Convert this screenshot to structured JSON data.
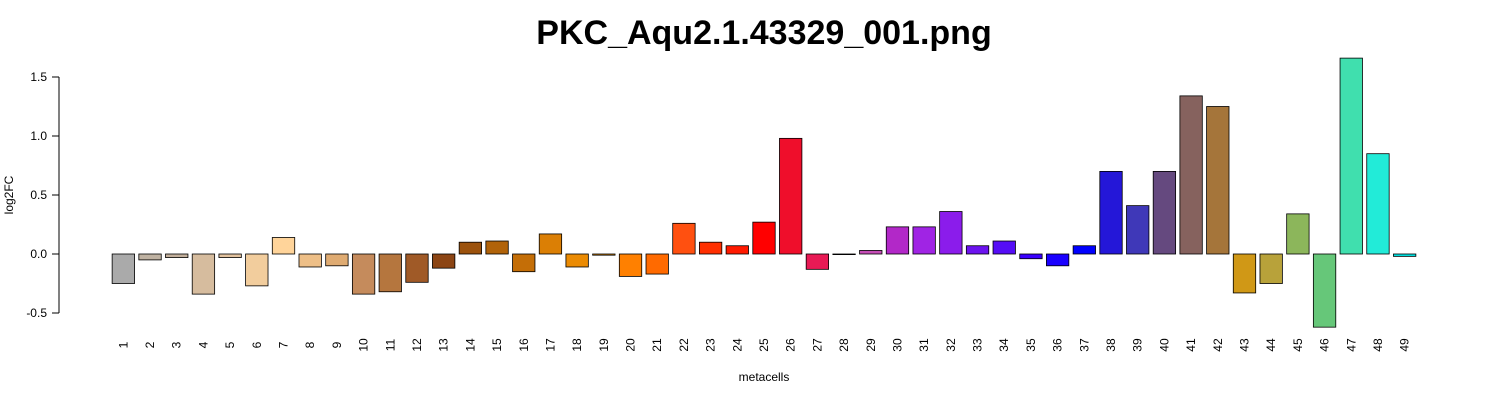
{
  "chart_data": {
    "type": "bar",
    "title": "PKC_Aqu2.1.43329_001.png",
    "xlabel": "metacells",
    "ylabel": "log2FC",
    "ylim": [
      -0.5,
      1.5
    ],
    "yticks": [
      -0.5,
      0.0,
      0.5,
      1.0,
      1.5
    ],
    "ytick_labels": [
      "-0.5",
      "0.0",
      "0.5",
      "1.0",
      "1.5"
    ],
    "grid": false,
    "legend": "none",
    "categories": [
      "1",
      "2",
      "3",
      "4",
      "5",
      "6",
      "7",
      "8",
      "9",
      "10",
      "11",
      "12",
      "13",
      "14",
      "15",
      "16",
      "17",
      "18",
      "19",
      "20",
      "21",
      "22",
      "23",
      "24",
      "25",
      "26",
      "27",
      "28",
      "29",
      "30",
      "31",
      "32",
      "33",
      "34",
      "35",
      "36",
      "37",
      "38",
      "39",
      "40",
      "41",
      "42",
      "43",
      "44",
      "45",
      "46",
      "47",
      "48",
      "49"
    ],
    "values": [
      -0.25,
      -0.05,
      -0.03,
      -0.34,
      -0.03,
      -0.27,
      0.14,
      -0.11,
      -0.1,
      -0.34,
      -0.32,
      -0.24,
      -0.12,
      0.1,
      0.11,
      -0.15,
      0.17,
      -0.11,
      -0.01,
      -0.19,
      -0.17,
      0.26,
      0.1,
      0.07,
      0.27,
      0.98,
      -0.13,
      0.0,
      0.03,
      0.23,
      0.23,
      0.36,
      0.07,
      0.11,
      -0.04,
      -0.1,
      0.07,
      0.7,
      0.41,
      0.7,
      1.34,
      1.25,
      -0.33,
      -0.25,
      0.34,
      -0.62,
      1.66,
      0.85,
      -0.02
    ],
    "colors": [
      "#aaaaaa",
      "#bfb2a2",
      "#c3b09c",
      "#d6bc9e",
      "#e3c39f",
      "#f2cd9d",
      "#ffd49a",
      "#eebf87",
      "#dfab72",
      "#c58b5c",
      "#b5763e",
      "#a05a27",
      "#8c4514",
      "#9c520c",
      "#b1630a",
      "#c46e07",
      "#db7f05",
      "#eb8b03",
      "#ff9900",
      "#ff8000",
      "#ff6a00",
      "#ff5010",
      "#ff2f00",
      "#ff1a00",
      "#ff0000",
      "#ef0e2b",
      "#e81a55",
      "#d33d89",
      "#c54db6",
      "#b228c8",
      "#a024e4",
      "#8b1ceb",
      "#6c13ef",
      "#550df6",
      "#3a00ff",
      "#1a00ff",
      "#0000ff",
      "#2417d8",
      "#3f38b8",
      "#65497f",
      "#86625e",
      "#a5753a",
      "#d09816",
      "#b8a23a",
      "#8cb65b",
      "#66c779",
      "#40dfae",
      "#22ebd8",
      "#00e6e6"
    ]
  }
}
